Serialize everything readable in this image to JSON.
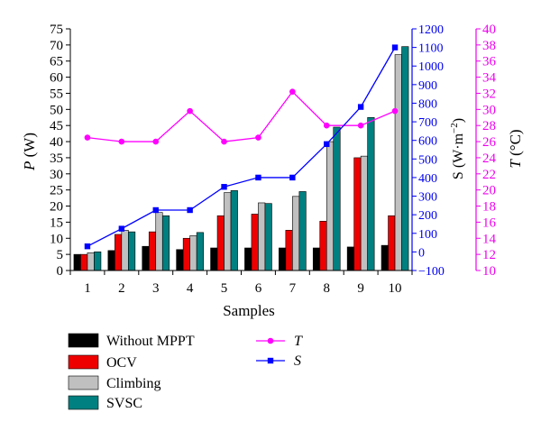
{
  "chart_data": {
    "type": "bar",
    "xlabel": "Samples",
    "categories": [
      "1",
      "2",
      "3",
      "4",
      "5",
      "6",
      "7",
      "8",
      "9",
      "10"
    ],
    "axes": {
      "left": {
        "label_main": "P",
        "label_unit": "(W)",
        "range": [
          0,
          75
        ],
        "ticks": [
          0,
          5,
          10,
          15,
          20,
          25,
          30,
          35,
          40,
          45,
          50,
          55,
          60,
          65,
          70,
          75
        ]
      },
      "right1": {
        "label_main": "S (W·m",
        "label_sup": "−2",
        "label_close": ")",
        "range": [
          -100,
          1200
        ],
        "ticks": [
          -100,
          0,
          100,
          200,
          300,
          400,
          500,
          600,
          700,
          800,
          900,
          1000,
          1100,
          1200
        ],
        "tick_labels": [
          "−100",
          "0",
          "100",
          "200",
          "300",
          "400",
          "500",
          "600",
          "700",
          "800",
          "900",
          "1000",
          "1100",
          "1200"
        ]
      },
      "right2": {
        "label_main": "T",
        "label_unit": "(°C)",
        "range": [
          10,
          40
        ],
        "ticks": [
          10,
          12,
          14,
          16,
          18,
          20,
          22,
          24,
          26,
          28,
          30,
          32,
          34,
          36,
          38,
          40
        ]
      }
    },
    "bar_series": [
      {
        "name": "Without MPPT",
        "color": "#000000",
        "values": [
          5.0,
          6.2,
          7.5,
          6.5,
          7.0,
          7.0,
          7.0,
          7.0,
          7.3,
          7.8
        ]
      },
      {
        "name": "OCV",
        "color": "#ee0000",
        "values": [
          5.0,
          11.2,
          12.0,
          10.0,
          17.0,
          17.5,
          12.5,
          15.3,
          35.0,
          17.0
        ]
      },
      {
        "name": "Climbing",
        "color": "#c0c0c0",
        "values": [
          5.5,
          12.5,
          18.0,
          10.8,
          24.2,
          21.0,
          23.0,
          40.0,
          35.5,
          67.0
        ]
      },
      {
        "name": "SVSC",
        "color": "#008080",
        "values": [
          5.8,
          12.0,
          17.0,
          11.8,
          24.8,
          20.8,
          24.5,
          44.5,
          47.5,
          69.5
        ]
      }
    ],
    "line_series": [
      {
        "name": "T",
        "axis": "right2",
        "color": "#ff00ff",
        "marker": "circle",
        "values": [
          26.5,
          26.0,
          26.0,
          29.8,
          26.0,
          26.5,
          32.2,
          28.0,
          28.0,
          29.8
        ]
      },
      {
        "name": "S",
        "axis": "right1",
        "color": "#0000ff",
        "marker": "square",
        "values": [
          30,
          125,
          225,
          225,
          350,
          400,
          400,
          580,
          780,
          1100
        ]
      }
    ],
    "grid": false,
    "legend_position": "bottom"
  }
}
